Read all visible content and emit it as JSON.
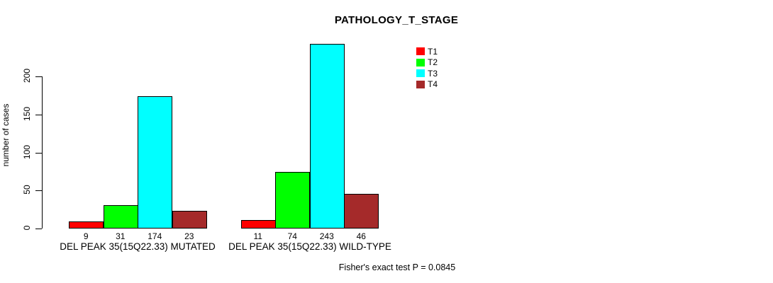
{
  "chart_data": {
    "type": "bar",
    "title": "PATHOLOGY_T_STAGE",
    "ylabel": "number of cases",
    "xlabel": "",
    "ylim": [
      0,
      200
    ],
    "yticks": [
      0,
      50,
      100,
      150,
      200
    ],
    "grid": false,
    "legend_position": "top-right",
    "series": [
      {
        "name": "T1",
        "color": "#FF0000"
      },
      {
        "name": "T2",
        "color": "#00FF00"
      },
      {
        "name": "T3",
        "color": "#00FFFF"
      },
      {
        "name": "T4",
        "color": "#A52A2A"
      }
    ],
    "categories": [
      "DEL PEAK 35(15Q22.33) MUTATED",
      "DEL PEAK 35(15Q22.33) WILD-TYPE"
    ],
    "groups": [
      {
        "label": "DEL PEAK 35(15Q22.33) MUTATED",
        "values": [
          9,
          31,
          174,
          23
        ]
      },
      {
        "label": "DEL PEAK 35(15Q22.33) WILD-TYPE",
        "values": [
          11,
          74,
          243,
          46
        ]
      }
    ],
    "annotation": "Fisher's exact test P = 0.0845"
  }
}
